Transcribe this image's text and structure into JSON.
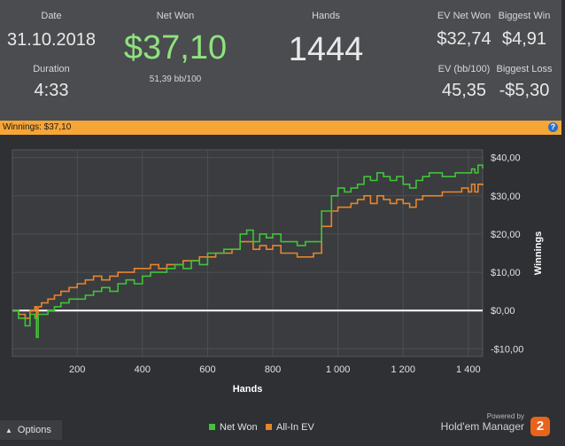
{
  "stats": {
    "date_label": "Date",
    "date_value": "31.10.2018",
    "duration_label": "Duration",
    "duration_value": "4:33",
    "net_won_label": "Net Won",
    "net_won_value": "$37,10",
    "bb_per_100": "51,39 bb/100",
    "hands_label": "Hands",
    "hands_value": "1444",
    "ev_net_won_label": "EV Net Won",
    "ev_net_won_value": "$32,74",
    "biggest_win_label": "Biggest Win",
    "biggest_win_value": "$4,91",
    "ev_bb_label": "EV (bb/100)",
    "ev_bb_value": "45,35",
    "biggest_loss_label": "Biggest Loss",
    "biggest_loss_value": "-$5,30"
  },
  "banner": {
    "text": "Winnings: $37,10",
    "help_icon": "question-icon"
  },
  "colors": {
    "net_won": "#42c23a",
    "all_in_ev": "#e8842c",
    "accent_banner": "#f5a637",
    "positive_text": "#8fe37e",
    "zero_line": "#ffffff"
  },
  "chart_data": {
    "type": "line",
    "xlabel": "Hands",
    "ylabel": "Winnings",
    "xlim": [
      1,
      1444
    ],
    "ylim": [
      -12,
      42
    ],
    "x_ticks": [
      200,
      400,
      600,
      800,
      1000,
      1200,
      1400
    ],
    "x_tick_labels": [
      "200",
      "400",
      "600",
      "800",
      "1 000",
      "1 200",
      "1 400"
    ],
    "y_ticks": [
      40,
      30,
      20,
      10,
      0,
      -10
    ],
    "y_tick_labels": [
      "$40,00",
      "$30,00",
      "$20,00",
      "$10,00",
      "$0,00",
      "-$10,00"
    ],
    "grid": true,
    "legend_position": "bottom-center",
    "series": [
      {
        "name": "Net Won",
        "color": "#42c23a",
        "x": [
          1,
          20,
          40,
          55,
          70,
          75,
          80,
          90,
          110,
          130,
          150,
          175,
          200,
          225,
          250,
          275,
          300,
          325,
          350,
          375,
          400,
          425,
          450,
          475,
          500,
          525,
          550,
          575,
          600,
          625,
          650,
          675,
          700,
          720,
          740,
          760,
          780,
          800,
          825,
          850,
          875,
          900,
          925,
          950,
          960,
          980,
          1000,
          1020,
          1040,
          1060,
          1080,
          1100,
          1120,
          1140,
          1160,
          1180,
          1200,
          1220,
          1240,
          1260,
          1280,
          1300,
          1320,
          1340,
          1360,
          1380,
          1400,
          1410,
          1420,
          1430,
          1444
        ],
        "y": [
          0,
          -2,
          -4,
          -1,
          -2,
          -7,
          -1,
          -1,
          0,
          1,
          2,
          3,
          3,
          4,
          5,
          6,
          5,
          7,
          8,
          7,
          9,
          10,
          10,
          11,
          12,
          11,
          13,
          12,
          15,
          15,
          16,
          16,
          20,
          21,
          18,
          20,
          19,
          20,
          18,
          18,
          17,
          18,
          18,
          26,
          26,
          30,
          32,
          31,
          32,
          33,
          35,
          34,
          36,
          35,
          34,
          35,
          33,
          32,
          34,
          35,
          36,
          36,
          35,
          35,
          36,
          36,
          36,
          37,
          36,
          38,
          37.1
        ]
      },
      {
        "name": "All-In EV",
        "color": "#e8842c",
        "x": [
          1,
          20,
          40,
          55,
          70,
          75,
          80,
          90,
          110,
          130,
          150,
          175,
          200,
          225,
          250,
          275,
          300,
          325,
          350,
          375,
          400,
          425,
          450,
          475,
          500,
          525,
          550,
          575,
          600,
          625,
          650,
          675,
          700,
          720,
          740,
          760,
          780,
          800,
          825,
          850,
          875,
          900,
          925,
          950,
          960,
          980,
          1000,
          1020,
          1040,
          1060,
          1080,
          1100,
          1120,
          1140,
          1160,
          1180,
          1200,
          1220,
          1240,
          1260,
          1280,
          1300,
          1320,
          1340,
          1360,
          1380,
          1400,
          1410,
          1420,
          1430,
          1444
        ],
        "y": [
          0,
          -1,
          -2,
          0,
          1,
          -2,
          1,
          2,
          3,
          4,
          5,
          6,
          7,
          8,
          9,
          8,
          9,
          10,
          10,
          11,
          11,
          12,
          11,
          12,
          12,
          13,
          13,
          14,
          14,
          15,
          15,
          16,
          18,
          18,
          16,
          17,
          16,
          17,
          15,
          15,
          14,
          14,
          15,
          22,
          22,
          26,
          27,
          27,
          28,
          29,
          30,
          28,
          30,
          29,
          28,
          29,
          28,
          27,
          29,
          30,
          30,
          30,
          31,
          31,
          31,
          32,
          31,
          33,
          31,
          33,
          32.7
        ]
      }
    ]
  },
  "footer": {
    "options_label": "Options",
    "powered_by": "Powered by",
    "brand": "Hold'em Manager",
    "logo_text": "2",
    "legend_net_won": "Net Won",
    "legend_ev": "All-In EV"
  }
}
